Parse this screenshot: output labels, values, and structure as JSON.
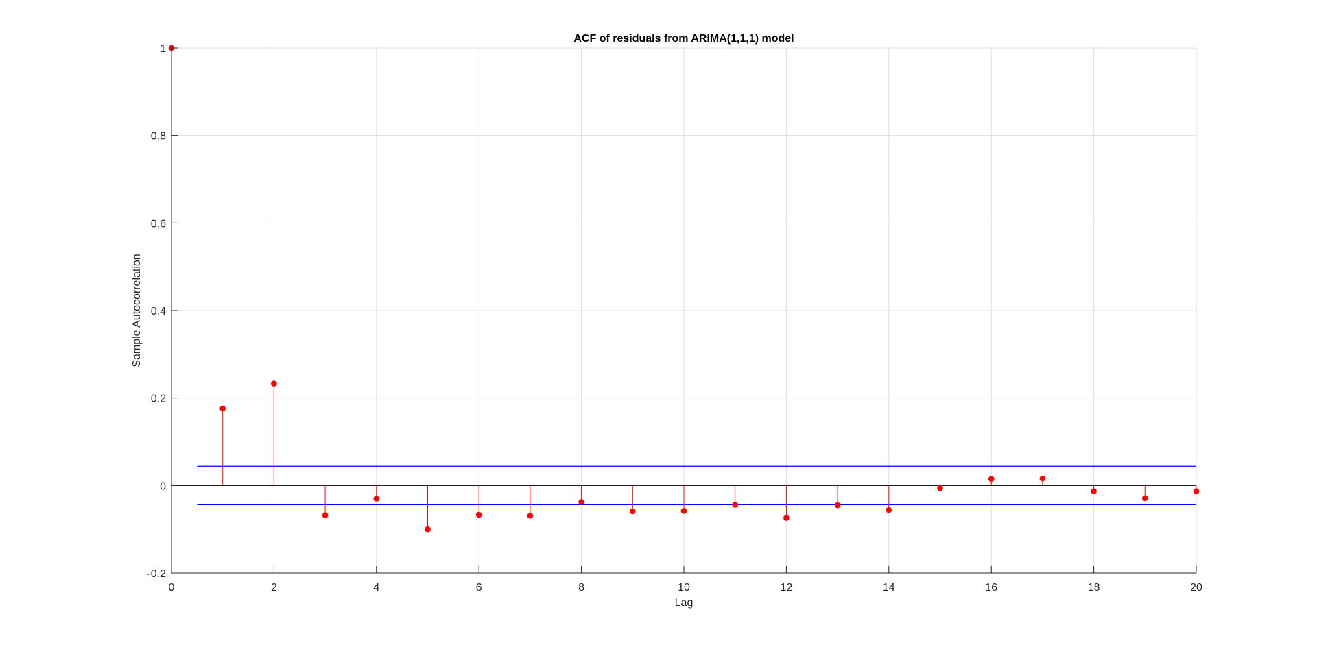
{
  "chart_data": {
    "type": "stem",
    "title": "ACF of residuals from ARIMA(1,1,1) model",
    "xlabel": "Lag",
    "ylabel": "Sample Autocorrelation",
    "xlim": [
      0,
      20
    ],
    "ylim": [
      -0.2,
      1
    ],
    "xticks": [
      "0",
      "2",
      "4",
      "6",
      "8",
      "10",
      "12",
      "14",
      "16",
      "18",
      "20"
    ],
    "yticks": [
      "-0.2",
      "0",
      "0.2",
      "0.4",
      "0.6",
      "0.8",
      "1"
    ],
    "grid": true,
    "series": [
      {
        "x": [
          0,
          1,
          2,
          3,
          4,
          5,
          6,
          7,
          8,
          9,
          10,
          11,
          12,
          13,
          14,
          15,
          16,
          17,
          18,
          19,
          20
        ],
        "values": [
          1.0,
          0.176,
          0.233,
          -0.068,
          -0.03,
          -0.1,
          -0.067,
          -0.069,
          -0.038,
          -0.059,
          -0.058,
          -0.044,
          -0.074,
          -0.045,
          -0.056,
          -0.006,
          0.015,
          0.016,
          -0.013,
          -0.029,
          -0.013
        ],
        "color": "#ff0000"
      }
    ],
    "confidence_bounds": {
      "upper": 0.044,
      "lower": -0.044,
      "x_range": [
        0.5,
        20
      ],
      "color": "#0000ff"
    },
    "zero_line_color": "#000000"
  }
}
